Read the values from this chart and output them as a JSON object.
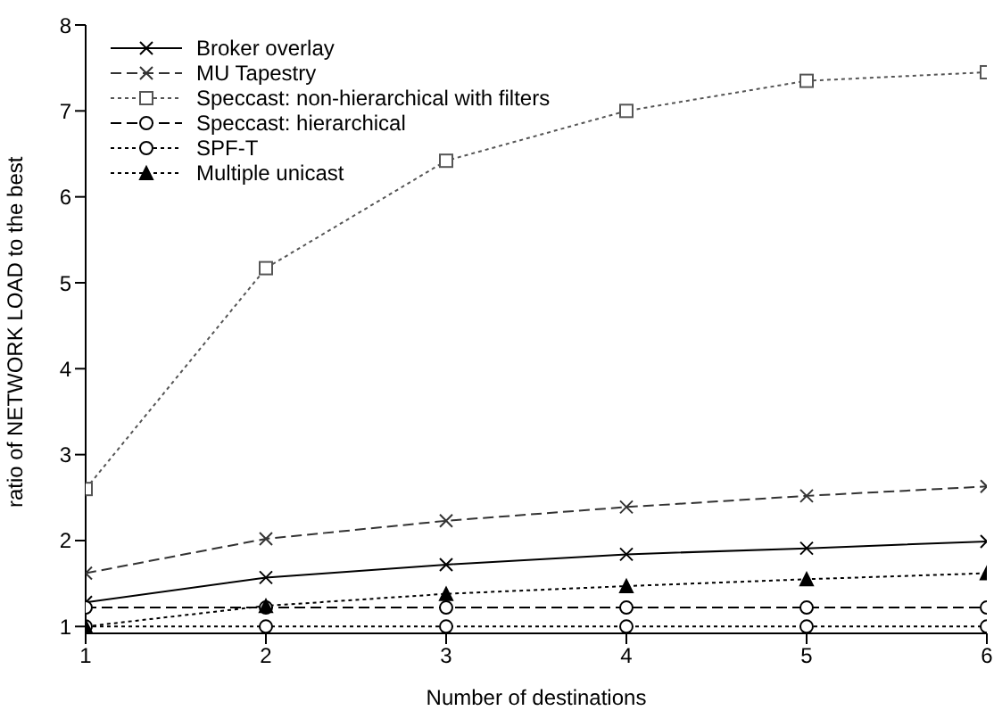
{
  "chart_data": {
    "type": "line",
    "xlabel": "Number of destinations",
    "ylabel": "ratio of NETWORK LOAD to the best",
    "x": [
      1,
      2,
      3,
      4,
      5,
      6
    ],
    "xlim": [
      1,
      6
    ],
    "xticks": [
      1,
      2,
      3,
      4,
      5,
      6
    ],
    "ylim": [
      0.92,
      8
    ],
    "yticks": [
      1,
      2,
      3,
      4,
      5,
      6,
      7,
      8
    ],
    "legend": "top left",
    "series": [
      {
        "name": "Broker overlay",
        "color": "#000000",
        "marker": "cross",
        "line_style": "solid",
        "values": [
          1.28,
          1.57,
          1.72,
          1.84,
          1.91,
          1.99
        ]
      },
      {
        "name": "MU Tapestry",
        "color": "#333333",
        "marker": "cross",
        "line_style": "dashed",
        "values": [
          1.62,
          2.02,
          2.23,
          2.39,
          2.52,
          2.63
        ]
      },
      {
        "name": "Speccast: non-hierarchical with filters",
        "color": "#555555",
        "marker": "square",
        "line_style": "dotted",
        "values": [
          2.6,
          5.17,
          6.42,
          7.0,
          7.35,
          7.45
        ]
      },
      {
        "name": "Speccast: hierarchical",
        "color": "#000000",
        "marker": "circle",
        "line_style": "dashed",
        "values": [
          1.22,
          1.22,
          1.22,
          1.22,
          1.22,
          1.22
        ]
      },
      {
        "name": "SPF-T",
        "color": "#000000",
        "marker": "circle",
        "line_style": "dotted",
        "values": [
          1,
          1,
          1,
          1,
          1,
          1
        ]
      },
      {
        "name": "Multiple unicast",
        "color": "#000000",
        "marker": "triangle",
        "line_style": "dotted",
        "values": [
          1.0,
          1.24,
          1.38,
          1.47,
          1.55,
          1.62
        ]
      }
    ]
  }
}
